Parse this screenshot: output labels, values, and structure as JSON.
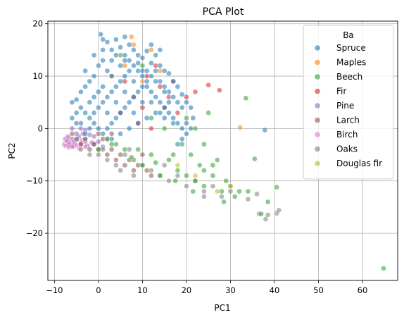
{
  "chart_data": {
    "type": "scatter",
    "title": "PCA Plot",
    "xlabel": "PC1",
    "ylabel": "PC2",
    "xlim": [
      -11.5,
      68
    ],
    "ylim": [
      -29,
      20.5
    ],
    "xticks": [
      -10,
      0,
      10,
      20,
      30,
      40,
      50,
      60
    ],
    "yticks": [
      -20,
      -10,
      0,
      10,
      20
    ],
    "xtick_labels": [
      "−10",
      "0",
      "10",
      "20",
      "30",
      "40",
      "50",
      "60"
    ],
    "ytick_labels": [
      "−20",
      "−10",
      "0",
      "10",
      "20"
    ],
    "grid": true,
    "legend": {
      "title": "Ba",
      "placement": "top-right",
      "entries": [
        "Spruce",
        "Maples",
        "Beech",
        "Fir",
        "Pine",
        "Larch",
        "Birch",
        "Oaks",
        "Douglas fir"
      ]
    },
    "colors": {
      "Spruce": "#1f77b4",
      "Maples": "#ff7f0e",
      "Beech": "#2ca02c",
      "Fir": "#d62728",
      "Pine": "#9467bd",
      "Larch": "#8c564b",
      "Birch": "#e377c2",
      "Oaks": "#7f7f7f",
      "Douglas fir": "#bcbd22"
    },
    "series": [
      {
        "name": "Pine",
        "points": [
          [
            -7.5,
            -2
          ],
          [
            -7,
            -2.5
          ],
          [
            -6.8,
            -1.8
          ],
          [
            -6.5,
            -2.8
          ],
          [
            -6,
            -2
          ],
          [
            -5.5,
            -3
          ],
          [
            -5,
            -2.2
          ],
          [
            -4.5,
            -1.5
          ],
          [
            -4,
            -2.8
          ],
          [
            -3.5,
            -1
          ],
          [
            -3,
            -2.5
          ],
          [
            -2.5,
            -3.3
          ],
          [
            -2,
            -1.2
          ],
          [
            -1.5,
            -2.7
          ],
          [
            -1,
            -3
          ],
          [
            0,
            -2.5
          ],
          [
            1,
            -3.5
          ],
          [
            2,
            -2
          ],
          [
            -6,
            0
          ],
          [
            -5,
            -1
          ],
          [
            -4,
            0
          ],
          [
            -6.8,
            -3.2
          ],
          [
            -5.8,
            -3.5
          ],
          [
            -3,
            -0.3
          ],
          [
            -1,
            -1.5
          ]
        ]
      },
      {
        "name": "Birch",
        "points": [
          [
            -7.8,
            -3
          ],
          [
            -7.5,
            -3.3
          ],
          [
            -7.2,
            -2.3
          ],
          [
            -6.7,
            -3.6
          ],
          [
            -6,
            -3.4
          ],
          [
            -5.6,
            -2.5
          ],
          [
            -5,
            -3.2
          ],
          [
            -4.4,
            -3.8
          ],
          [
            -3.8,
            -2.2
          ],
          [
            -3,
            -3.5
          ],
          [
            -7,
            -1.5
          ],
          [
            -4,
            -3
          ]
        ]
      },
      {
        "name": "Larch",
        "points": [
          [
            -6,
            -1
          ],
          [
            -5,
            -2
          ],
          [
            -4,
            -3
          ],
          [
            -3,
            -2
          ],
          [
            -2,
            -4
          ],
          [
            -1,
            -3
          ],
          [
            0,
            -4
          ],
          [
            1,
            -2
          ],
          [
            2,
            -5
          ],
          [
            3,
            -4
          ],
          [
            4,
            -6
          ],
          [
            5,
            -5
          ],
          [
            6,
            -7
          ],
          [
            7,
            -6
          ],
          [
            8,
            -8
          ],
          [
            9,
            -7
          ],
          [
            10,
            -5
          ],
          [
            11,
            -8
          ],
          [
            12,
            -9
          ],
          [
            3,
            -1
          ],
          [
            0,
            -1
          ]
        ]
      },
      {
        "name": "Oaks",
        "points": [
          [
            -4,
            -4
          ],
          [
            -2,
            -5
          ],
          [
            0,
            -5
          ],
          [
            2,
            -6
          ],
          [
            4,
            -7
          ],
          [
            6,
            -5
          ],
          [
            8,
            -9
          ],
          [
            10,
            -7
          ],
          [
            12,
            -8
          ],
          [
            14,
            -9
          ],
          [
            16,
            -10
          ],
          [
            18,
            -9
          ],
          [
            20,
            -11
          ],
          [
            22,
            -10
          ],
          [
            24,
            -12
          ],
          [
            26,
            -11
          ],
          [
            28,
            -13
          ],
          [
            30,
            -12
          ],
          [
            34,
            -13.5
          ],
          [
            36,
            -12.5
          ],
          [
            38,
            -17.3
          ],
          [
            38.5,
            -16.5
          ],
          [
            40.5,
            -16.2
          ],
          [
            41,
            -15.6
          ],
          [
            36.5,
            -16.3
          ],
          [
            -3,
            -2
          ],
          [
            1,
            -4
          ],
          [
            5,
            -8
          ],
          [
            7,
            -4
          ],
          [
            15,
            -7
          ],
          [
            24,
            -13
          ]
        ]
      },
      {
        "name": "Beech",
        "points": [
          [
            0,
            -4
          ],
          [
            2,
            -2
          ],
          [
            4,
            -3
          ],
          [
            6,
            -4
          ],
          [
            8,
            -6
          ],
          [
            10,
            -7
          ],
          [
            12,
            -5
          ],
          [
            14,
            -9
          ],
          [
            16,
            -6
          ],
          [
            18,
            -8
          ],
          [
            20,
            -9
          ],
          [
            22,
            -10
          ],
          [
            24,
            -11
          ],
          [
            26,
            -9
          ],
          [
            28,
            -12
          ],
          [
            30,
            -11
          ],
          [
            32,
            -12
          ],
          [
            33.5,
            5.8
          ],
          [
            25,
            3
          ],
          [
            24,
            -3
          ],
          [
            21,
            -5
          ],
          [
            23,
            -7
          ],
          [
            27,
            -6
          ],
          [
            29,
            -10
          ],
          [
            34,
            -12
          ],
          [
            35.5,
            -5.8
          ],
          [
            37,
            -16.3
          ],
          [
            38.5,
            -14
          ],
          [
            40.5,
            -11.2
          ],
          [
            64.8,
            -26.7
          ],
          [
            20,
            2
          ],
          [
            22,
            0
          ],
          [
            15,
            0
          ],
          [
            12,
            2
          ],
          [
            5,
            14
          ],
          [
            10,
            12
          ],
          [
            3,
            -3
          ],
          [
            9,
            -4
          ],
          [
            17,
            -5
          ],
          [
            19,
            -3
          ],
          [
            26,
            -7
          ],
          [
            31,
            -13
          ],
          [
            28.5,
            -14
          ],
          [
            24,
            -8
          ],
          [
            21.5,
            -12
          ],
          [
            17.5,
            -10
          ],
          [
            13,
            -6.5
          ],
          [
            7.5,
            -5.5
          ]
        ]
      },
      {
        "name": "Fir",
        "points": [
          [
            5,
            3
          ],
          [
            8,
            6
          ],
          [
            11,
            10
          ],
          [
            14,
            8
          ],
          [
            17,
            9
          ],
          [
            20,
            6
          ],
          [
            22,
            7
          ],
          [
            25,
            8.3
          ],
          [
            27.5,
            7.3
          ],
          [
            12,
            0
          ],
          [
            9,
            1
          ],
          [
            15,
            4
          ],
          [
            18,
            3
          ],
          [
            6,
            9
          ],
          [
            13,
            12
          ],
          [
            10,
            4
          ],
          [
            16,
            6
          ]
        ]
      },
      {
        "name": "Maples",
        "points": [
          [
            7.5,
            17.5
          ],
          [
            8,
            16
          ],
          [
            12,
            15
          ],
          [
            14,
            11
          ],
          [
            32.2,
            0.2
          ],
          [
            3,
            10
          ],
          [
            6,
            12
          ],
          [
            10,
            9
          ]
        ]
      },
      {
        "name": "Douglas fir",
        "points": [
          [
            30,
            -11
          ],
          [
            27,
            -12
          ],
          [
            22,
            -9
          ],
          [
            18,
            -7
          ]
        ]
      },
      {
        "name": "Spruce",
        "points": [
          [
            0.5,
            18
          ],
          [
            1,
            17
          ],
          [
            2,
            16.5
          ],
          [
            3,
            15
          ],
          [
            4,
            17
          ],
          [
            5,
            15.5
          ],
          [
            6,
            14
          ],
          [
            7,
            16
          ],
          [
            8,
            15
          ],
          [
            9,
            14
          ],
          [
            10,
            13.5
          ],
          [
            11,
            14.8
          ],
          [
            12,
            12.5
          ],
          [
            13,
            14
          ],
          [
            14,
            12
          ],
          [
            15,
            11
          ],
          [
            16,
            10.5
          ],
          [
            17,
            9
          ],
          [
            18,
            8
          ],
          [
            19,
            6.5
          ],
          [
            20,
            5
          ],
          [
            21,
            4
          ],
          [
            21.5,
            2
          ],
          [
            21,
            0
          ],
          [
            20,
            -1
          ],
          [
            19,
            -2
          ],
          [
            18,
            -3
          ],
          [
            -5,
            5.5
          ],
          [
            -4,
            7
          ],
          [
            -3,
            8
          ],
          [
            -2,
            9
          ],
          [
            -1,
            10
          ],
          [
            0,
            12
          ],
          [
            1,
            13
          ],
          [
            2,
            11
          ],
          [
            -4,
            4
          ],
          [
            -3,
            3
          ],
          [
            -2,
            2
          ],
          [
            -1,
            1
          ],
          [
            0,
            0
          ],
          [
            1,
            -1
          ],
          [
            2,
            0
          ],
          [
            3,
            1
          ],
          [
            4,
            2
          ],
          [
            5,
            3
          ],
          [
            6,
            4
          ],
          [
            7,
            5
          ],
          [
            8,
            6
          ],
          [
            9,
            7
          ],
          [
            10,
            8
          ],
          [
            11,
            9
          ],
          [
            12,
            10
          ],
          [
            13,
            11
          ],
          [
            14,
            9
          ],
          [
            15,
            8
          ],
          [
            16,
            7
          ],
          [
            17,
            6
          ],
          [
            18,
            5
          ],
          [
            19,
            4
          ],
          [
            -6,
            2
          ],
          [
            -5,
            3
          ],
          [
            -4,
            1
          ],
          [
            -3,
            -1
          ],
          [
            -2,
            0
          ],
          [
            -1,
            3
          ],
          [
            0,
            4
          ],
          [
            1,
            5
          ],
          [
            2,
            6
          ],
          [
            3,
            7
          ],
          [
            4,
            8
          ],
          [
            5,
            9
          ],
          [
            6,
            10
          ],
          [
            7,
            11
          ],
          [
            8,
            12
          ],
          [
            9,
            11
          ],
          [
            10,
            10
          ],
          [
            11,
            8
          ],
          [
            12,
            7
          ],
          [
            13,
            6
          ],
          [
            14,
            5
          ],
          [
            15,
            4
          ],
          [
            16,
            3
          ],
          [
            17,
            2
          ],
          [
            18,
            1
          ],
          [
            19,
            0
          ],
          [
            20,
            1
          ],
          [
            3,
            -2
          ],
          [
            5,
            -1
          ],
          [
            7,
            0
          ],
          [
            9,
            1
          ],
          [
            11,
            2
          ],
          [
            13,
            3
          ],
          [
            15,
            2
          ],
          [
            17,
            1
          ],
          [
            -1,
            6
          ],
          [
            1,
            8
          ],
          [
            3,
            10
          ],
          [
            5,
            12
          ],
          [
            7,
            13
          ],
          [
            9,
            12.5
          ],
          [
            11,
            11
          ],
          [
            13,
            9
          ],
          [
            15,
            7
          ],
          [
            2,
            3
          ],
          [
            4,
            5
          ],
          [
            6,
            7
          ],
          [
            8,
            9
          ],
          [
            10,
            11
          ],
          [
            12,
            5
          ],
          [
            14,
            3
          ],
          [
            16,
            5
          ],
          [
            4,
            14
          ],
          [
            6,
            13
          ],
          [
            -2,
            5
          ],
          [
            0,
            7
          ],
          [
            8,
            3
          ],
          [
            10,
            5
          ],
          [
            37.8,
            -0.3
          ],
          [
            -3,
            11
          ],
          [
            -1,
            14
          ],
          [
            1,
            15
          ],
          [
            3,
            13
          ],
          [
            12,
            16
          ],
          [
            14,
            15
          ],
          [
            -6,
            5
          ],
          [
            -5,
            1
          ],
          [
            6,
            17.5
          ]
        ]
      }
    ]
  }
}
